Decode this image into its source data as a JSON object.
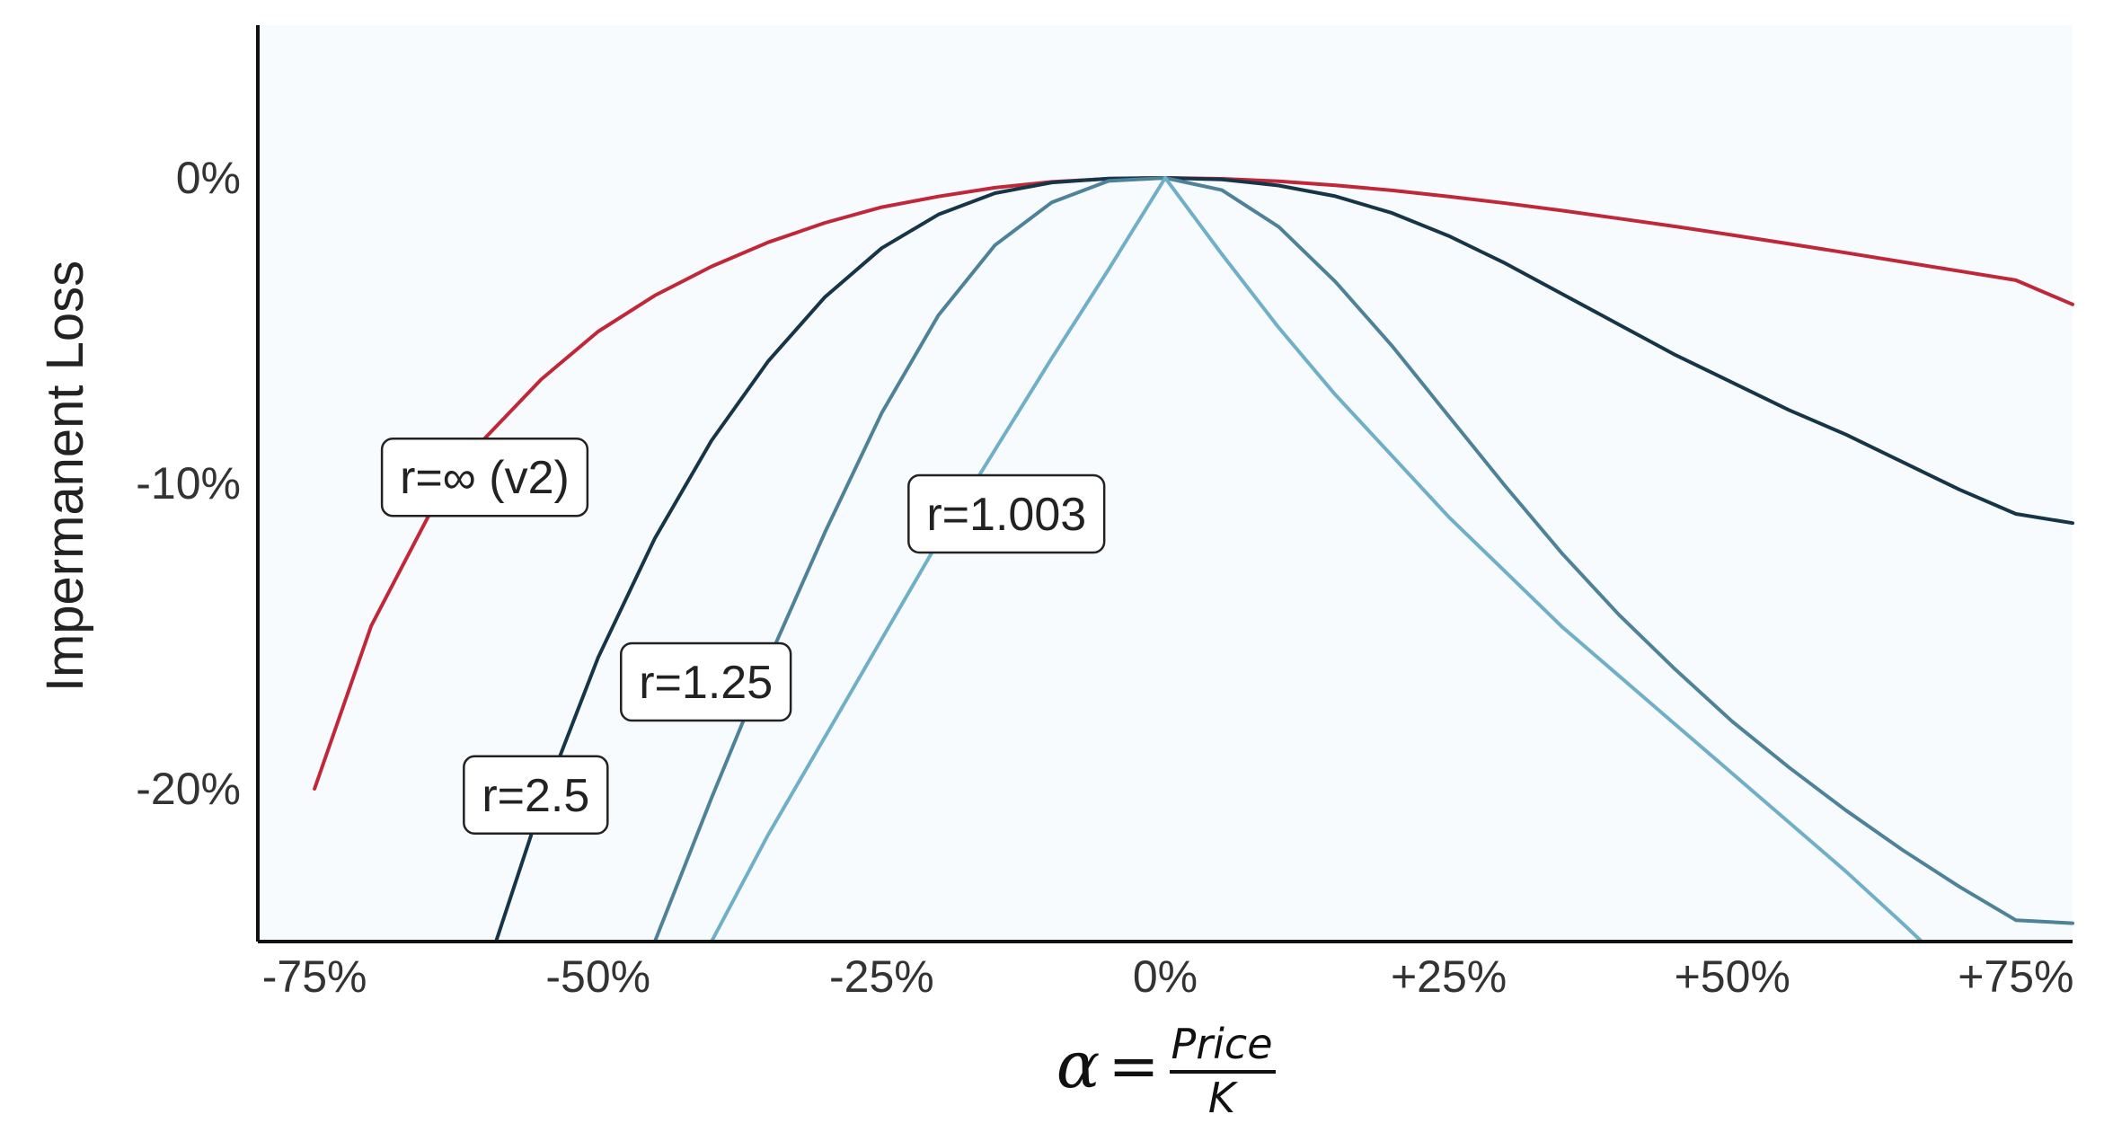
{
  "chart_data": {
    "type": "line",
    "title": "",
    "ylabel": "Impermanent Loss",
    "xlabel": {
      "symbol": "α",
      "equals": "=",
      "numerator": "Price",
      "denominator": "K"
    },
    "xlim": [
      -0.8,
      0.8
    ],
    "ylim": [
      -0.25,
      0.05
    ],
    "x_ticks": [
      {
        "value": -0.75,
        "label": "-75%"
      },
      {
        "value": -0.5,
        "label": "-50%"
      },
      {
        "value": -0.25,
        "label": "-25%"
      },
      {
        "value": 0.0,
        "label": "0%"
      },
      {
        "value": 0.25,
        "label": "+25%"
      },
      {
        "value": 0.5,
        "label": "+50%"
      },
      {
        "value": 0.75,
        "label": "+75%"
      }
    ],
    "y_ticks": [
      {
        "value": 0.0,
        "label": "0%"
      },
      {
        "value": -0.1,
        "label": "-10%"
      },
      {
        "value": -0.2,
        "label": "-20%"
      }
    ],
    "grid": false,
    "legend": "none",
    "series": [
      {
        "name": "r=∞ (v2)",
        "color": "#c0283a",
        "x": [
          -0.75,
          -0.7,
          -0.65,
          -0.6,
          -0.55,
          -0.5,
          -0.45,
          -0.4,
          -0.35,
          -0.3,
          -0.25,
          -0.2,
          -0.15,
          -0.1,
          -0.05,
          0.0,
          0.05,
          0.1,
          0.15,
          0.2,
          0.25,
          0.3,
          0.35,
          0.4,
          0.45,
          0.5,
          0.55,
          0.6,
          0.65,
          0.7,
          0.75,
          0.8
        ],
        "y": [
          -0.2,
          -0.1466,
          -0.111,
          -0.0853,
          -0.0659,
          -0.0503,
          -0.0385,
          -0.029,
          -0.0211,
          -0.0147,
          -0.0096,
          -0.0061,
          -0.0032,
          -0.0013,
          -0.0003,
          0.0,
          -0.0003,
          -0.0011,
          -0.0024,
          -0.0041,
          -0.0061,
          -0.0083,
          -0.0107,
          -0.0133,
          -0.0159,
          -0.0187,
          -0.0216,
          -0.0245,
          -0.0275,
          -0.0305,
          -0.0335,
          -0.0414
        ]
      },
      {
        "name": "r=2.5",
        "color": "#173548",
        "x": [
          -0.59,
          -0.55,
          -0.5,
          -0.45,
          -0.4,
          -0.35,
          -0.3,
          -0.25,
          -0.2,
          -0.15,
          -0.1,
          -0.05,
          0.0,
          0.05,
          0.1,
          0.15,
          0.2,
          0.25,
          0.3,
          0.35,
          0.4,
          0.45,
          0.5,
          0.55,
          0.6,
          0.65,
          0.7,
          0.75,
          0.8
        ],
        "y": [
          -0.25,
          -0.205,
          -0.157,
          -0.118,
          -0.086,
          -0.06,
          -0.039,
          -0.023,
          -0.012,
          -0.005,
          -0.0015,
          -0.0002,
          0.0,
          -0.0005,
          -0.0025,
          -0.006,
          -0.0115,
          -0.019,
          -0.028,
          -0.038,
          -0.048,
          -0.058,
          -0.067,
          -0.076,
          -0.084,
          -0.093,
          -0.102,
          -0.11,
          -0.113
        ]
      },
      {
        "name": "r=1.25",
        "color": "#4e8299",
        "x": [
          -0.45,
          -0.4,
          -0.35,
          -0.3,
          -0.25,
          -0.2,
          -0.15,
          -0.1,
          -0.05,
          0.0,
          0.05,
          0.1,
          0.15,
          0.2,
          0.25,
          0.3,
          0.35,
          0.4,
          0.45,
          0.5,
          0.55,
          0.6,
          0.65,
          0.7,
          0.75,
          0.8
        ],
        "y": [
          -0.25,
          -0.203,
          -0.158,
          -0.116,
          -0.077,
          -0.045,
          -0.022,
          -0.008,
          -0.001,
          0.0,
          -0.004,
          -0.016,
          -0.034,
          -0.055,
          -0.078,
          -0.101,
          -0.123,
          -0.143,
          -0.161,
          -0.178,
          -0.193,
          -0.207,
          -0.22,
          -0.232,
          -0.243,
          -0.244
        ]
      },
      {
        "name": "r=1.003",
        "color": "#6fb0c8",
        "x": [
          -0.4,
          -0.35,
          -0.3,
          -0.25,
          -0.2,
          -0.15,
          -0.1,
          -0.05,
          0.0,
          0.05,
          0.1,
          0.15,
          0.2,
          0.25,
          0.3,
          0.35,
          0.4,
          0.45,
          0.5,
          0.55,
          0.6,
          0.65,
          0.667
        ],
        "y": [
          -0.25,
          -0.215,
          -0.183,
          -0.151,
          -0.119,
          -0.089,
          -0.059,
          -0.03,
          0.0,
          -0.025,
          -0.049,
          -0.071,
          -0.091,
          -0.111,
          -0.129,
          -0.147,
          -0.163,
          -0.179,
          -0.195,
          -0.211,
          -0.227,
          -0.244,
          -0.25
        ]
      }
    ],
    "annotations": [
      {
        "text": "r=∞ (v2)",
        "x": -0.6,
        "y": -0.098
      },
      {
        "text": "r=1.003",
        "x": -0.14,
        "y": -0.11
      },
      {
        "text": "r=1.25",
        "x": -0.405,
        "y": -0.165
      },
      {
        "text": "r=2.5",
        "x": -0.555,
        "y": -0.202
      }
    ]
  }
}
